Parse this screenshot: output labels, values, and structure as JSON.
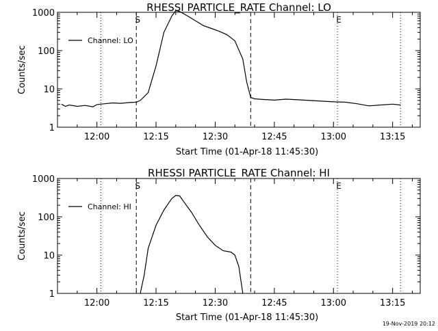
{
  "chart_data": [
    {
      "type": "line",
      "title": "RHESSI PARTICLE_RATE Channel: LO",
      "xlabel": "Start Time (01-Apr-18 11:45:30)",
      "ylabel": "Counts/sec",
      "yscale": "log",
      "ylim": [
        1,
        1000
      ],
      "xlim": [
        "11:50",
        "13:22"
      ],
      "x_ticks": [
        "12:00",
        "12:15",
        "12:30",
        "12:45",
        "13:00",
        "13:15"
      ],
      "y_ticks": [
        "1",
        "10",
        "100",
        "1000"
      ],
      "legend": "top-left",
      "series": [
        {
          "name": "Channel: LO",
          "x": [
            "11:51",
            "11:52",
            "11:53",
            "11:55",
            "11:57",
            "11:59",
            "12:00",
            "12:02",
            "12:04",
            "12:06",
            "12:08",
            "12:10",
            "12:11",
            "12:13",
            "12:15",
            "12:17",
            "12:19",
            "12:20",
            "12:21",
            "12:23",
            "12:25",
            "12:27",
            "12:29",
            "12:31",
            "12:33",
            "12:35",
            "12:37",
            "12:38",
            "12:39",
            "12:40",
            "12:42",
            "12:45",
            "12:48",
            "12:51",
            "12:54",
            "12:57",
            "13:00",
            "13:03",
            "13:06",
            "13:09",
            "13:12",
            "13:15",
            "13:17"
          ],
          "y": [
            4,
            3.5,
            3.8,
            3.5,
            3.7,
            3.4,
            3.9,
            4.1,
            4.3,
            4.2,
            4.4,
            4.5,
            5,
            8,
            40,
            300,
            800,
            1100,
            1050,
            800,
            600,
            450,
            380,
            320,
            260,
            180,
            60,
            15,
            6,
            5.5,
            5.3,
            5.1,
            5.4,
            5.2,
            5,
            4.8,
            4.6,
            4.5,
            4.1,
            3.6,
            3.8,
            4.0,
            3.8
          ]
        }
      ],
      "markers": [
        {
          "label": "S",
          "time": "12:10",
          "style": "dashed"
        },
        {
          "label": "",
          "time": "12:39",
          "style": "dashed"
        },
        {
          "label": "",
          "time": "12:01",
          "style": "dotted"
        },
        {
          "label": "E",
          "time": "13:01",
          "style": "dotted"
        },
        {
          "label": "",
          "time": "13:17",
          "style": "dotted"
        }
      ]
    },
    {
      "type": "line",
      "title": "RHESSI PARTICLE_RATE Channel: HI",
      "xlabel": "Start Time (01-Apr-18 11:45:30)",
      "ylabel": "Counts/sec",
      "yscale": "log",
      "ylim": [
        1,
        1000
      ],
      "xlim": [
        "11:50",
        "13:22"
      ],
      "x_ticks": [
        "12:00",
        "12:15",
        "12:30",
        "12:45",
        "13:00",
        "13:15"
      ],
      "y_ticks": [
        "1",
        "10",
        "100",
        "1000"
      ],
      "legend": "top-left",
      "series": [
        {
          "name": "Channel: HI",
          "x": [
            "12:11",
            "12:12",
            "12:13",
            "12:15",
            "12:17",
            "12:19",
            "12:20",
            "12:21",
            "12:22",
            "12:24",
            "12:26",
            "12:28",
            "12:30",
            "12:32",
            "12:34",
            "12:35",
            "12:36",
            "12:37"
          ],
          "y": [
            1,
            3,
            15,
            60,
            150,
            300,
            360,
            350,
            250,
            130,
            60,
            30,
            18,
            13,
            12,
            10,
            5,
            1
          ]
        }
      ],
      "markers": [
        {
          "label": "S",
          "time": "12:10",
          "style": "dashed"
        },
        {
          "label": "",
          "time": "12:39",
          "style": "dashed"
        },
        {
          "label": "",
          "time": "12:01",
          "style": "dotted"
        },
        {
          "label": "E",
          "time": "13:01",
          "style": "dotted"
        },
        {
          "label": "",
          "time": "13:17",
          "style": "dotted"
        }
      ]
    }
  ],
  "footer": {
    "timestamp": "19-Nov-2019 20:12"
  }
}
